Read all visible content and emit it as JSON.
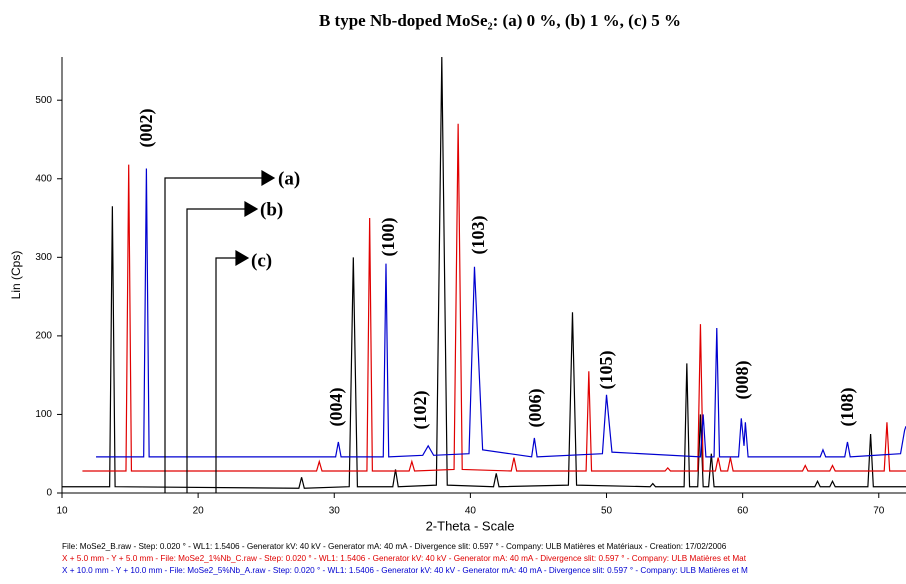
{
  "chart_data": {
    "type": "line",
    "title": "B type Nb-doped MoSe₂: (a) 0 %, (b) 1 %, (c) 5 %",
    "x_label": "2-Theta - Scale",
    "y_label": "Lin (Cps)",
    "xlim": [
      10,
      72
    ],
    "ylim": [
      0,
      555
    ],
    "xticks": [
      10,
      20,
      30,
      40,
      50,
      60,
      70
    ],
    "yticks": [
      0,
      100,
      200,
      300,
      400,
      500
    ],
    "series": [
      {
        "name": "(a)",
        "color": "#000000",
        "x": [
          10,
          13.5,
          13.7,
          13.9,
          27.4,
          27.6,
          27.8,
          31.1,
          31.4,
          31.7,
          34.3,
          34.5,
          34.7,
          37.5,
          37.9,
          38.3,
          41.7,
          41.9,
          42.1,
          47.2,
          47.5,
          47.8,
          53.2,
          53.4,
          53.6,
          55.7,
          55.9,
          56.1,
          56.7,
          56.9,
          57.1,
          57.5,
          57.7,
          57.9,
          65.3,
          65.5,
          65.7,
          66.4,
          66.6,
          66.8,
          69.2,
          69.4,
          69.6,
          72
        ],
        "values": [
          8,
          8,
          365,
          8,
          6,
          20,
          6,
          8,
          300,
          8,
          8,
          30,
          8,
          10,
          555,
          10,
          8,
          25,
          8,
          10,
          230,
          10,
          8,
          12,
          8,
          8,
          165,
          8,
          8,
          100,
          8,
          8,
          50,
          8,
          8,
          15,
          8,
          8,
          15,
          8,
          8,
          75,
          8,
          8
        ]
      },
      {
        "name": "(b)",
        "color": "#e00000",
        "x": [
          11.5,
          14.7,
          14.9,
          15.1,
          28.7,
          28.9,
          29.1,
          32.4,
          32.6,
          32.8,
          35.5,
          35.7,
          35.9,
          38.8,
          39.1,
          39.4,
          43.0,
          43.2,
          43.4,
          48.5,
          48.7,
          48.9,
          54.3,
          54.5,
          54.7,
          56.7,
          56.9,
          57.1,
          58.0,
          58.2,
          58.4,
          58.9,
          59.1,
          59.3,
          64.4,
          64.6,
          64.8,
          66.4,
          66.6,
          66.8,
          70.4,
          70.6,
          70.8,
          72
        ],
        "values": [
          28,
          28,
          418,
          28,
          28,
          40,
          28,
          28,
          350,
          28,
          28,
          40,
          28,
          30,
          470,
          30,
          28,
          45,
          28,
          28,
          155,
          28,
          28,
          32,
          28,
          28,
          215,
          28,
          28,
          45,
          28,
          28,
          45,
          28,
          28,
          35,
          28,
          28,
          35,
          28,
          28,
          90,
          28,
          28
        ]
      },
      {
        "name": "(c)",
        "color": "#0000d0",
        "x": [
          12.5,
          16.0,
          16.2,
          16.4,
          30.1,
          30.3,
          30.5,
          33.6,
          33.8,
          34.0,
          36.5,
          36.9,
          37.3,
          39.9,
          40.3,
          40.9,
          44.5,
          44.7,
          44.9,
          49.7,
          50.0,
          50.4,
          56.9,
          57.1,
          57.3,
          57.9,
          58.1,
          58.3,
          59.7,
          59.9,
          60.1,
          60.2,
          60.4,
          65.7,
          65.9,
          66.1,
          67.5,
          67.7,
          67.9,
          71.6,
          71.9,
          72
        ],
        "values": [
          46,
          46,
          413,
          46,
          46,
          65,
          46,
          46,
          292,
          46,
          48,
          60,
          48,
          50,
          288,
          55,
          46,
          70,
          46,
          50,
          125,
          52,
          46,
          100,
          46,
          46,
          210,
          46,
          46,
          95,
          60,
          90,
          46,
          46,
          55,
          46,
          46,
          65,
          46,
          50,
          80,
          85
        ]
      }
    ],
    "annotations": [
      "(002)",
      "(004)",
      "(100)",
      "(102)",
      "(103)",
      "(006)",
      "(105)",
      "(008)",
      "(108)"
    ],
    "notes": [
      "File: MoSe2_B.raw - Step: 0.020 ° - WL1: 1.5406 - Generator kV: 40 kV - Generator mA: 40 mA - Divergence slit: 0.597 ° - Company: ULB Matières et Matériaux - Creation: 17/02/2006",
      "X + 5.0 mm - Y + 5.0 mm - File: MoSe2_1%Nb_C.raw - Step: 0.020 ° - WL1: 1.5406 - Generator kV: 40 kV - Generator mA: 40 mA - Divergence slit: 0.597 ° - Company: ULB Matières et Mat",
      "X + 10.0 mm - Y + 10.0 mm - File: MoSe2_5%Nb_A.raw - Step: 0.020 ° - WL1: 1.5406 - Generator kV: 40 kV - Generator mA: 40 mA - Divergence slit: 0.597 ° - Company: ULB Matières et M"
    ]
  }
}
